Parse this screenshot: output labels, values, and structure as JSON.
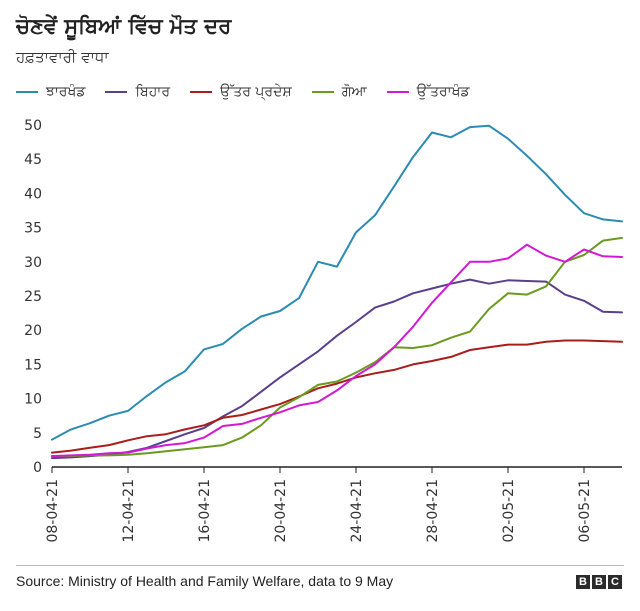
{
  "chart_data": {
    "type": "line",
    "title": "ਚੋਣਵੇਂ ਸੂਬਿਆਂ ਵਿੱਚ ਮੌਤ ਦਰ",
    "subtitle": "ਹਫ਼ਤਾਵਾਰੀ ਵਾਧਾ",
    "xlabel": "",
    "ylabel": "",
    "ylim": [
      0,
      50
    ],
    "yticks": [
      0,
      5,
      10,
      15,
      20,
      25,
      30,
      35,
      40,
      45,
      50
    ],
    "xtick_labels": [
      "08-04-21",
      "12-04-21",
      "16-04-21",
      "20-04-21",
      "24-04-21",
      "28-04-21",
      "02-05-21",
      "06-05-21"
    ],
    "xtick_indices": [
      0,
      4,
      8,
      12,
      16,
      20,
      24,
      28
    ],
    "n_points": 31,
    "legend_position": "top",
    "gridlines": false,
    "series": [
      {
        "name": "ਝਾਰਖੰਡ",
        "color": "#2b8cb0",
        "values": [
          4.0,
          5.5,
          6.4,
          7.5,
          8.2,
          10.4,
          12.4,
          14.0,
          17.2,
          18.0,
          20.2,
          22.0,
          22.8,
          24.7,
          30.0,
          29.3,
          34.3,
          36.8,
          41.0,
          45.3,
          48.9,
          48.2,
          49.7,
          49.9,
          48.0,
          45.5,
          42.8,
          39.8,
          37.1,
          36.2,
          35.9
        ]
      },
      {
        "name": "ਬਿਹਾਰ",
        "color": "#5a3f8a",
        "values": [
          1.3,
          1.4,
          1.6,
          1.8,
          2.2,
          2.8,
          3.8,
          4.8,
          5.7,
          7.4,
          8.9,
          11.0,
          13.1,
          15.0,
          16.9,
          19.2,
          21.2,
          23.3,
          24.2,
          25.4,
          26.1,
          26.8,
          27.4,
          26.8,
          27.3,
          27.2,
          27.1,
          25.2,
          24.3,
          22.7,
          22.6
        ]
      },
      {
        "name": "ਉੱਤਰ ਪ੍ਰਦੇਸ਼",
        "color": "#a91d1d",
        "values": [
          2.1,
          2.4,
          2.8,
          3.2,
          3.9,
          4.5,
          4.8,
          5.5,
          6.1,
          7.2,
          7.6,
          8.4,
          9.2,
          10.3,
          11.5,
          12.2,
          13.1,
          13.7,
          14.2,
          15.0,
          15.5,
          16.1,
          17.1,
          17.5,
          17.9,
          17.9,
          18.3,
          18.5,
          18.5,
          18.4,
          18.3
        ]
      },
      {
        "name": "ਗੋਆ",
        "color": "#6a9a1f",
        "values": [
          1.6,
          1.6,
          1.7,
          1.7,
          1.8,
          2.0,
          2.3,
          2.6,
          2.9,
          3.2,
          4.3,
          6.1,
          8.7,
          10.2,
          12.0,
          12.5,
          13.8,
          15.3,
          17.5,
          17.4,
          17.8,
          18.9,
          19.8,
          23.1,
          25.4,
          25.2,
          26.4,
          30.0,
          31.0,
          33.1,
          33.5
        ]
      },
      {
        "name": "ਉੱਤਰਾਖੰਡ",
        "color": "#d219d6",
        "values": [
          1.6,
          1.7,
          1.8,
          2.0,
          2.1,
          2.7,
          3.2,
          3.5,
          4.3,
          6.0,
          6.3,
          7.2,
          8.0,
          9.0,
          9.5,
          11.2,
          13.3,
          15.0,
          17.5,
          20.5,
          24.0,
          27.0,
          30.0,
          30.0,
          30.5,
          32.5,
          30.9,
          30.0,
          31.8,
          30.8,
          30.7
        ]
      }
    ]
  },
  "footer": {
    "source": "Source: Ministry of Health and Family Welfare, data to 9 May",
    "logo_letters": [
      "B",
      "B",
      "C"
    ]
  }
}
